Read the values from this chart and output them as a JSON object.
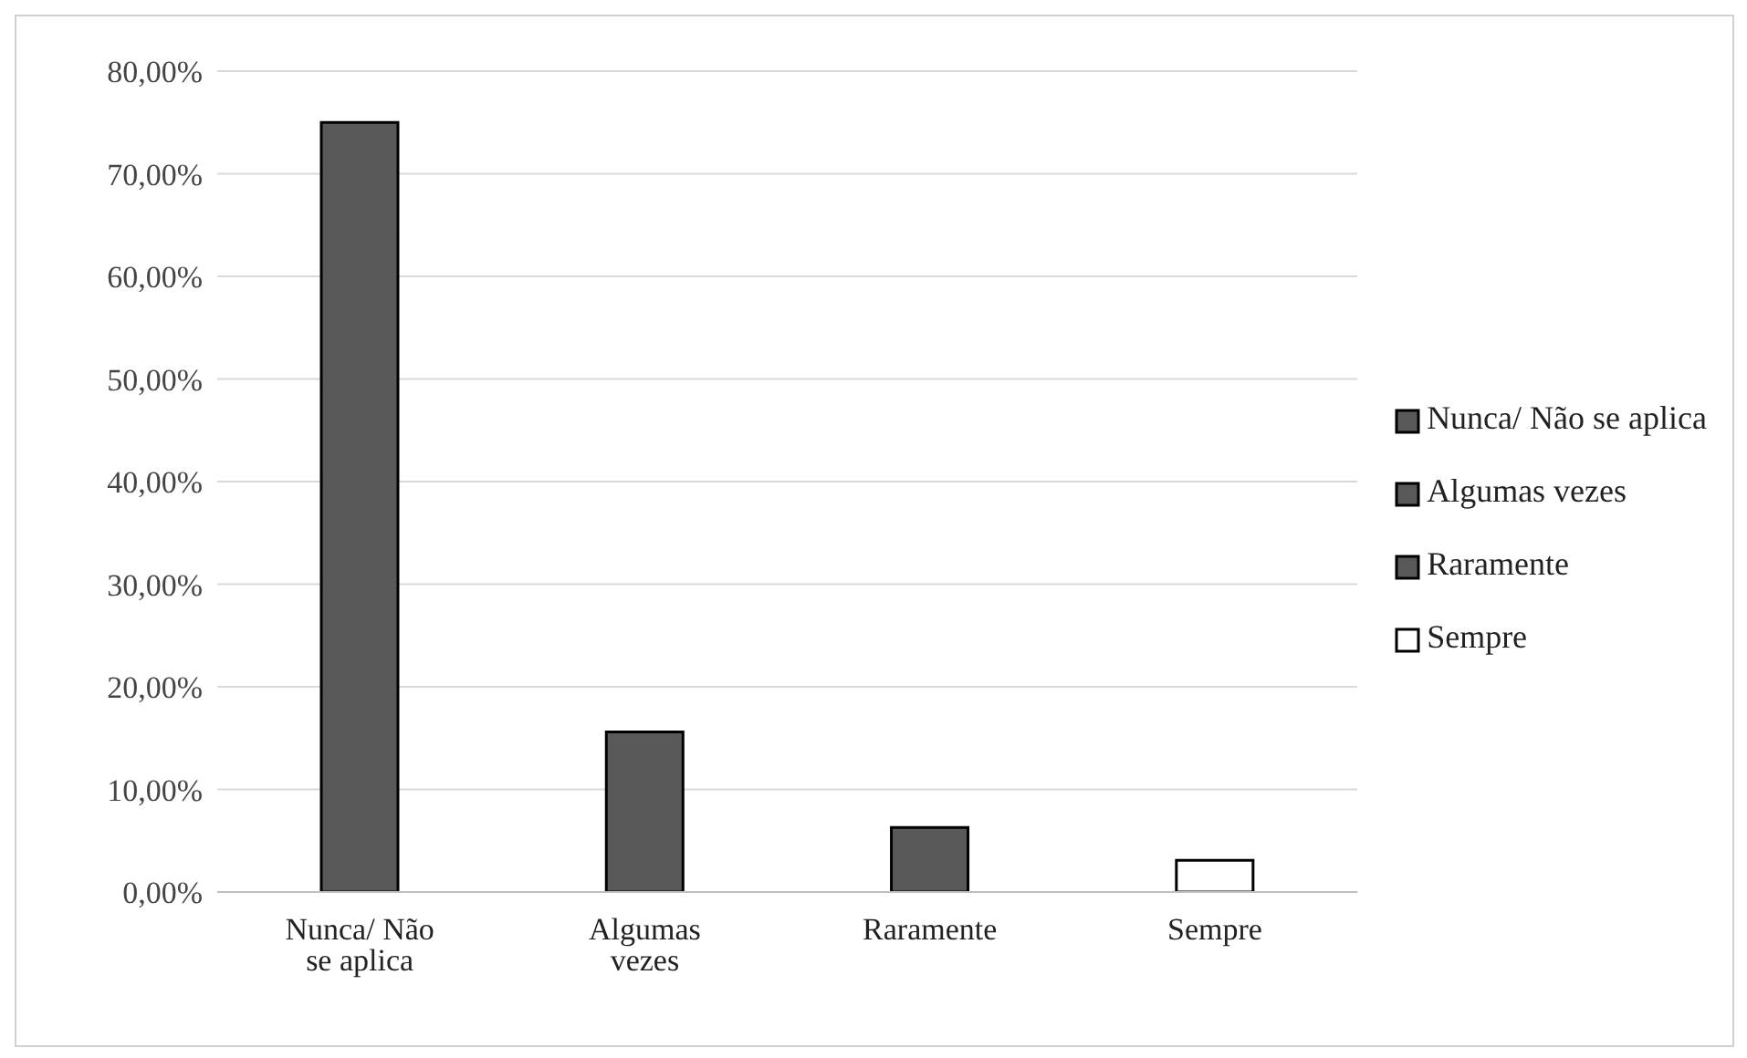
{
  "chart_data": {
    "type": "bar",
    "categories": [
      "Nunca/ Não se aplica",
      "Algumas vezes",
      "Raramente",
      "Sempre"
    ],
    "series": [
      {
        "name": "Nunca/ Não se aplica",
        "color": "#595959",
        "values": [
          75,
          null,
          null,
          null
        ]
      },
      {
        "name": "Algumas vezes",
        "color": "#595959",
        "values": [
          null,
          15.6,
          null,
          null
        ]
      },
      {
        "name": "Raramente",
        "color": "#595959",
        "values": [
          null,
          null,
          6.3,
          null
        ]
      },
      {
        "name": "Sempre",
        "color": "#ffffff",
        "values": [
          null,
          null,
          null,
          3.1
        ]
      }
    ],
    "stacked": true,
    "ylim": [
      0,
      80
    ],
    "yticks": [
      {
        "value": 0,
        "label": "0,00%"
      },
      {
        "value": 10,
        "label": "10,00%"
      },
      {
        "value": 20,
        "label": "20,00%"
      },
      {
        "value": 30,
        "label": "30,00%"
      },
      {
        "value": 40,
        "label": "40,00%"
      },
      {
        "value": 50,
        "label": "50,00%"
      },
      {
        "value": 60,
        "label": "60,00%"
      },
      {
        "value": 70,
        "label": "70,00%"
      },
      {
        "value": 80,
        "label": "80,00%"
      }
    ],
    "grid": "y",
    "legend": "right"
  }
}
